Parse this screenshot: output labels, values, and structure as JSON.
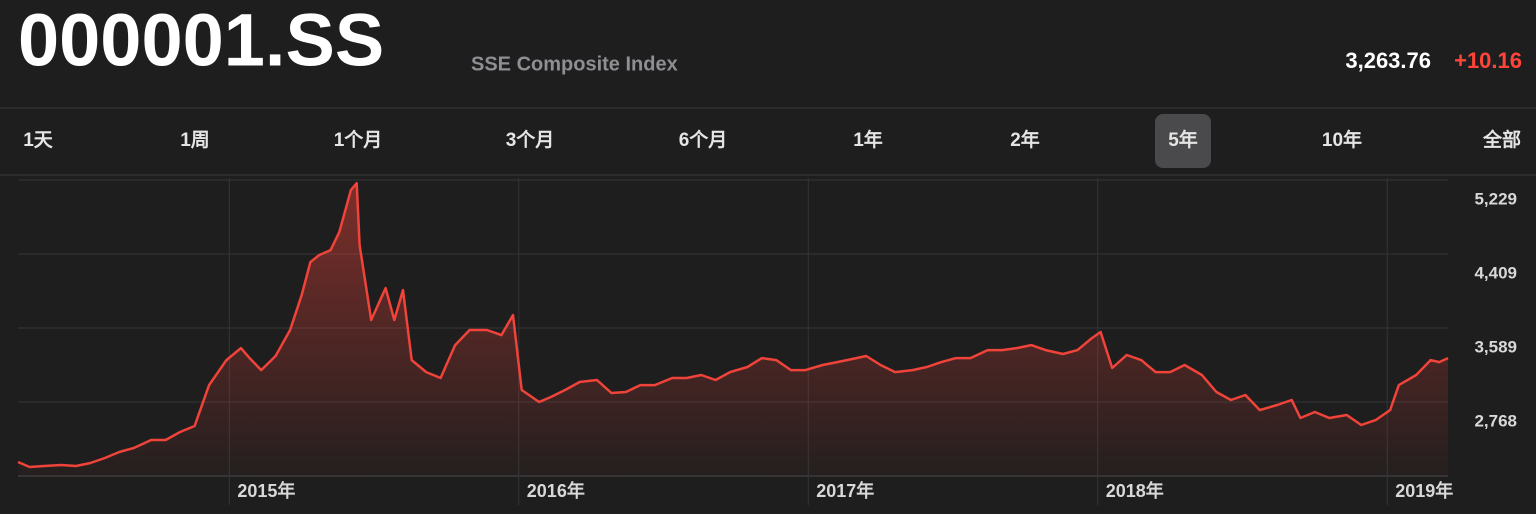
{
  "header": {
    "symbol": "000001.SS",
    "name": "SSE Composite Index",
    "price": "3,263.76",
    "change": "+10.16"
  },
  "tabs": [
    "1天",
    "1周",
    "1个月",
    "3个月",
    "6个月",
    "1年",
    "2年",
    "5年",
    "10年",
    "全部"
  ],
  "selected_tab": 7,
  "chart_data": {
    "type": "area",
    "color": "#f0433a",
    "grid": true,
    "x": [
      2014.27,
      2014.31,
      2014.36,
      2014.42,
      2014.47,
      2014.52,
      2014.57,
      2014.62,
      2014.67,
      2014.73,
      2014.78,
      2014.83,
      2014.88,
      2014.93,
      2014.99,
      2015.04,
      2015.07,
      2015.11,
      2015.16,
      2015.21,
      2015.25,
      2015.28,
      2015.31,
      2015.35,
      2015.38,
      2015.42,
      2015.44,
      2015.45,
      2015.49,
      2015.54,
      2015.57,
      2015.6,
      2015.63,
      2015.68,
      2015.73,
      2015.78,
      2015.83,
      2015.89,
      2015.94,
      2015.98,
      2016.01,
      2016.07,
      2016.11,
      2016.16,
      2016.21,
      2016.27,
      2016.32,
      2016.37,
      2016.42,
      2016.47,
      2016.53,
      2016.58,
      2016.63,
      2016.68,
      2016.73,
      2016.79,
      2016.84,
      2016.89,
      2016.94,
      2016.99,
      2017.05,
      2017.1,
      2017.15,
      2017.2,
      2017.25,
      2017.3,
      2017.36,
      2017.41,
      2017.46,
      2017.51,
      2017.56,
      2017.62,
      2017.67,
      2017.72,
      2017.77,
      2017.82,
      2017.88,
      2017.93,
      2017.98,
      2018.01,
      2018.05,
      2018.1,
      2018.15,
      2018.2,
      2018.25,
      2018.3,
      2018.36,
      2018.41,
      2018.46,
      2018.51,
      2018.56,
      2018.62,
      2018.67,
      2018.7,
      2018.75,
      2018.8,
      2018.86,
      2018.91,
      2018.96,
      2019.01,
      2019.04,
      2019.1,
      2019.15,
      2019.18,
      2019.21
    ],
    "values": [
      2103,
      2048,
      2059,
      2070,
      2059,
      2092,
      2147,
      2214,
      2258,
      2347,
      2347,
      2436,
      2502,
      2956,
      3233,
      3366,
      3255,
      3122,
      3278,
      3566,
      3954,
      4319,
      4397,
      4452,
      4652,
      5117,
      5194,
      4507,
      3677,
      4031,
      3677,
      4009,
      3233,
      3100,
      3034,
      3399,
      3566,
      3566,
      3510,
      3732,
      2901,
      2768,
      2823,
      2901,
      2990,
      3012,
      2868,
      2879,
      2956,
      2956,
      3034,
      3034,
      3067,
      3012,
      3100,
      3156,
      3255,
      3233,
      3122,
      3122,
      3178,
      3211,
      3244,
      3278,
      3178,
      3100,
      3122,
      3156,
      3211,
      3255,
      3255,
      3344,
      3344,
      3366,
      3399,
      3344,
      3300,
      3344,
      3477,
      3544,
      3145,
      3289,
      3233,
      3100,
      3100,
      3178,
      3067,
      2879,
      2790,
      2846,
      2679,
      2735,
      2790,
      2591,
      2657,
      2591,
      2624,
      2513,
      2568,
      2679,
      2956,
      3067,
      3233,
      3211,
      3255
    ],
    "xlim": [
      2014.27,
      2019.21
    ],
    "xticks": [
      {
        "value": 2015,
        "label": "2015年"
      },
      {
        "value": 2016,
        "label": "2016年"
      },
      {
        "value": 2017,
        "label": "2017年"
      },
      {
        "value": 2018,
        "label": "2018年"
      },
      {
        "value": 2019,
        "label": "2019年"
      }
    ],
    "ylim": [
      1948,
      5229
    ],
    "yticks": [
      {
        "value": 5229,
        "label": "5,229"
      },
      {
        "value": 4409,
        "label": "4,409"
      },
      {
        "value": 3589,
        "label": "3,589"
      },
      {
        "value": 2768,
        "label": "2,768"
      }
    ]
  }
}
